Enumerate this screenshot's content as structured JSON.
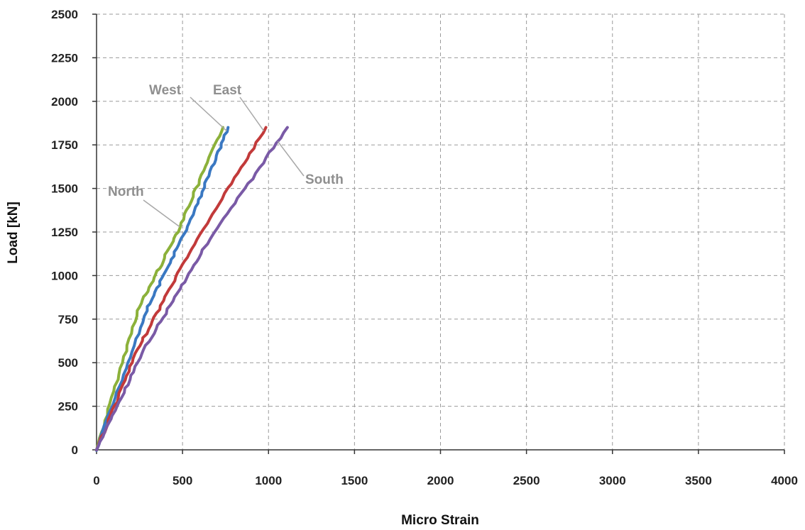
{
  "chart_data": {
    "type": "line",
    "title": "",
    "xlabel": "Micro Strain",
    "ylabel": "Load [kN]",
    "xlim": [
      0,
      4000
    ],
    "ylim": [
      0,
      2500
    ],
    "x_ticks": [
      0,
      500,
      1000,
      1500,
      2000,
      2500,
      3000,
      3500,
      4000
    ],
    "y_ticks": [
      0,
      250,
      500,
      750,
      1000,
      1250,
      1500,
      1750,
      2000,
      2250,
      2500
    ],
    "x_tick_labels": [
      "0",
      "500",
      "1000",
      "1500",
      "2000",
      "2500",
      "3000",
      "3500",
      "4000"
    ],
    "y_tick_labels": [
      "0",
      "250",
      "500",
      "750",
      "1000",
      "1250",
      "1500",
      "1750",
      "2000",
      "2250",
      "2500"
    ],
    "grid": true,
    "series": [
      {
        "name": "North",
        "color": "#8cb13a",
        "x": [
          0,
          240,
          470,
          735
        ],
        "y": [
          0,
          800,
          1250,
          1850
        ]
      },
      {
        "name": "West",
        "color": "#3a78c2",
        "x": [
          0,
          290,
          540,
          765
        ],
        "y": [
          0,
          800,
          1300,
          1850
        ]
      },
      {
        "name": "East",
        "color": "#c23a3a",
        "x": [
          0,
          250,
          550,
          985
        ],
        "y": [
          0,
          600,
          1150,
          1850
        ]
      },
      {
        "name": "South",
        "color": "#7a5aa6",
        "x": [
          0,
          290,
          620,
          1110
        ],
        "y": [
          0,
          600,
          1150,
          1850
        ]
      }
    ],
    "annotations": [
      {
        "text": "West",
        "series": "West"
      },
      {
        "text": "East",
        "series": "East"
      },
      {
        "text": "North",
        "series": "North"
      },
      {
        "text": "South",
        "series": "South"
      }
    ]
  }
}
